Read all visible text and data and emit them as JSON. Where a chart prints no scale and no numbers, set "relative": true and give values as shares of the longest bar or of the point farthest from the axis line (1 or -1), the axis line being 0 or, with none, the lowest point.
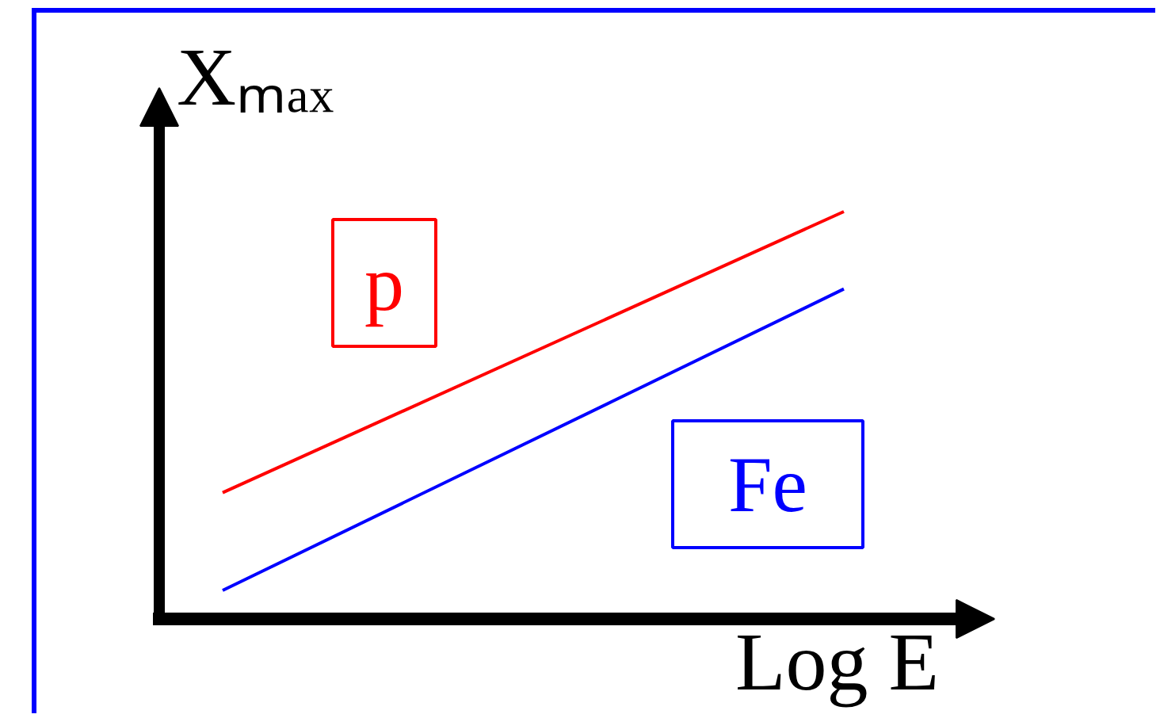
{
  "chart_data": {
    "type": "line",
    "xlabel": "Log E",
    "ylabel": "Xₘₐₓ",
    "relative": true,
    "categories": [
      null,
      null
    ],
    "series": [
      {
        "name": "p",
        "color": "#ff0000",
        "values": [
          0.31,
          1
        ]
      },
      {
        "name": "Fe",
        "color": "#0000ff",
        "values": [
          0.07,
          0.81
        ]
      }
    ]
  }
}
